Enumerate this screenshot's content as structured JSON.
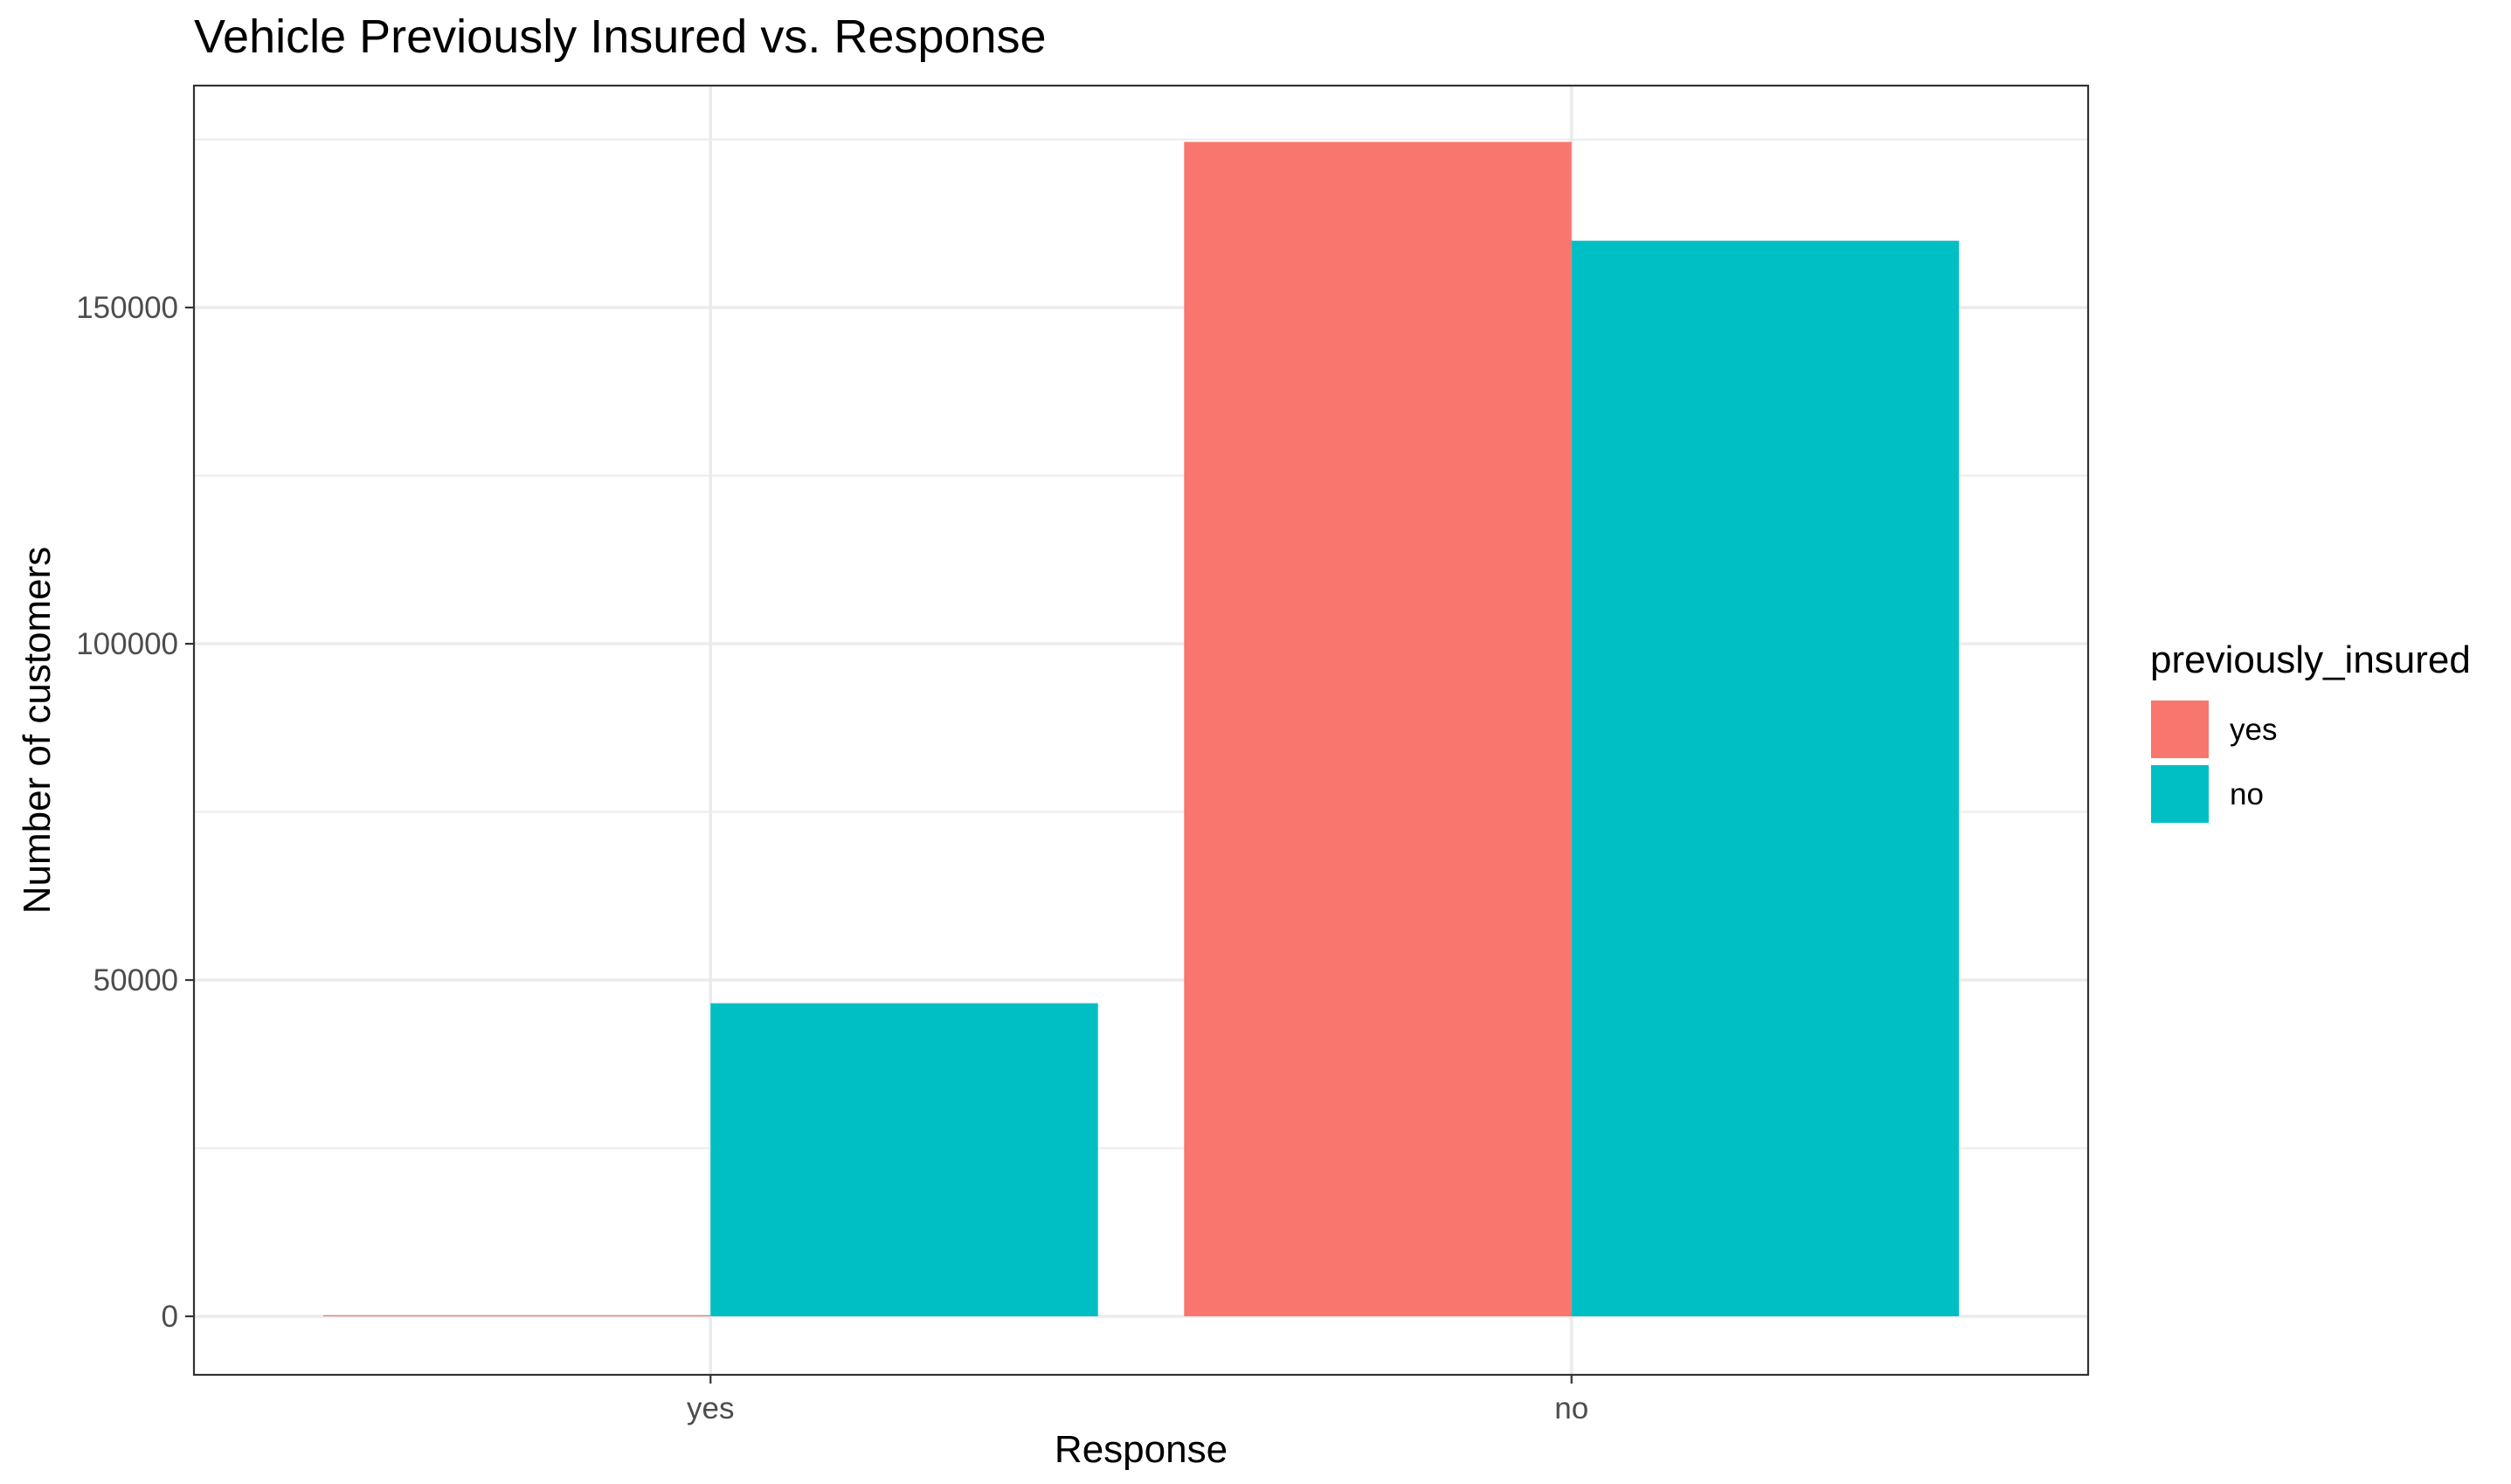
{
  "chart_data": {
    "type": "bar",
    "title": "Vehicle Previously Insured vs. Response",
    "xlabel": "Response",
    "ylabel": "Number of customers",
    "categories": [
      "yes",
      "no"
    ],
    "series": [
      {
        "name": "yes",
        "color": "#F8766D",
        "values": [
          158,
          174628
        ]
      },
      {
        "name": "no",
        "color": "#00BFC4",
        "values": [
          46552,
          159929
        ]
      }
    ],
    "ylim": [
      -8700,
      183000
    ],
    "yticks": [
      0,
      50000,
      100000,
      150000
    ],
    "ytick_labels": [
      "0",
      "50000",
      "100000",
      "150000"
    ],
    "grid": true,
    "legend": {
      "title": "previously_insured",
      "position": "right",
      "entries": [
        "yes",
        "no"
      ]
    }
  }
}
